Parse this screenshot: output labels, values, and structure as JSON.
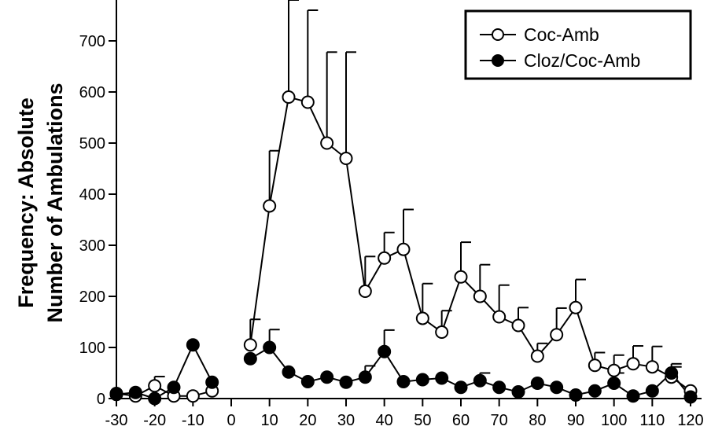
{
  "chart_data": {
    "type": "line",
    "title": "",
    "ylabel_lines": [
      "Frequency: Absolute",
      "Number of Ambulations"
    ],
    "xlabel": "",
    "xlim": [
      -30,
      120
    ],
    "ylim": [
      0,
      780
    ],
    "x_ticks": [
      -30,
      -20,
      -10,
      0,
      10,
      20,
      30,
      40,
      50,
      60,
      70,
      80,
      90,
      100,
      110,
      120
    ],
    "y_ticks": [
      0,
      100,
      200,
      300,
      400,
      500,
      600,
      700
    ],
    "legend_position": "top-right",
    "series": [
      {
        "name": "Coc-Amb",
        "marker": "open-circle",
        "color": "#000000",
        "segments": [
          {
            "x": [
              -30,
              -25,
              -20,
              -15,
              -10,
              -5
            ],
            "y": [
              10,
              5,
              25,
              5,
              5,
              15
            ],
            "err": [
              0,
              0,
              18,
              0,
              0,
              0
            ]
          },
          {
            "x": [
              5,
              10,
              15,
              20,
              25,
              30,
              35,
              40,
              45,
              50,
              55,
              60,
              65,
              70,
              75,
              80,
              85,
              90,
              95,
              100,
              105,
              110,
              115,
              120
            ],
            "y": [
              105,
              377,
              590,
              580,
              500,
              470,
              210,
              275,
              292,
              157,
              130,
              238,
              200,
              160,
              143,
              83,
              125,
              178,
              65,
              55,
              68,
              62,
              42,
              15
            ],
            "err": [
              50,
              108,
              190,
              180,
              178,
              208,
              68,
              50,
              78,
              68,
              42,
              68,
              62,
              62,
              35,
              25,
              52,
              55,
              25,
              30,
              35,
              40,
              20,
              0
            ]
          }
        ]
      },
      {
        "name": "Cloz/Coc-Amb",
        "marker": "filled-circle",
        "color": "#000000",
        "segments": [
          {
            "x": [
              -30,
              -25,
              -20,
              -15,
              -10,
              -5
            ],
            "y": [
              8,
              12,
              0,
              22,
              105,
              32
            ],
            "err": [
              0,
              0,
              0,
              0,
              0,
              0
            ]
          },
          {
            "x": [
              5,
              10,
              15,
              20,
              25,
              30,
              35,
              40,
              45,
              50,
              55,
              60,
              65,
              70,
              75,
              80,
              85,
              90,
              95,
              100,
              105,
              110,
              115,
              120
            ],
            "y": [
              78,
              100,
              52,
              33,
              42,
              32,
              42,
              92,
              33,
              37,
              40,
              22,
              35,
              22,
              13,
              30,
              22,
              7,
              15,
              30,
              5,
              15,
              50,
              3
            ],
            "err": [
              0,
              35,
              0,
              0,
              0,
              0,
              22,
              42,
              0,
              0,
              0,
              0,
              15,
              0,
              0,
              0,
              0,
              0,
              0,
              20,
              0,
              0,
              18,
              0
            ]
          }
        ]
      }
    ]
  }
}
